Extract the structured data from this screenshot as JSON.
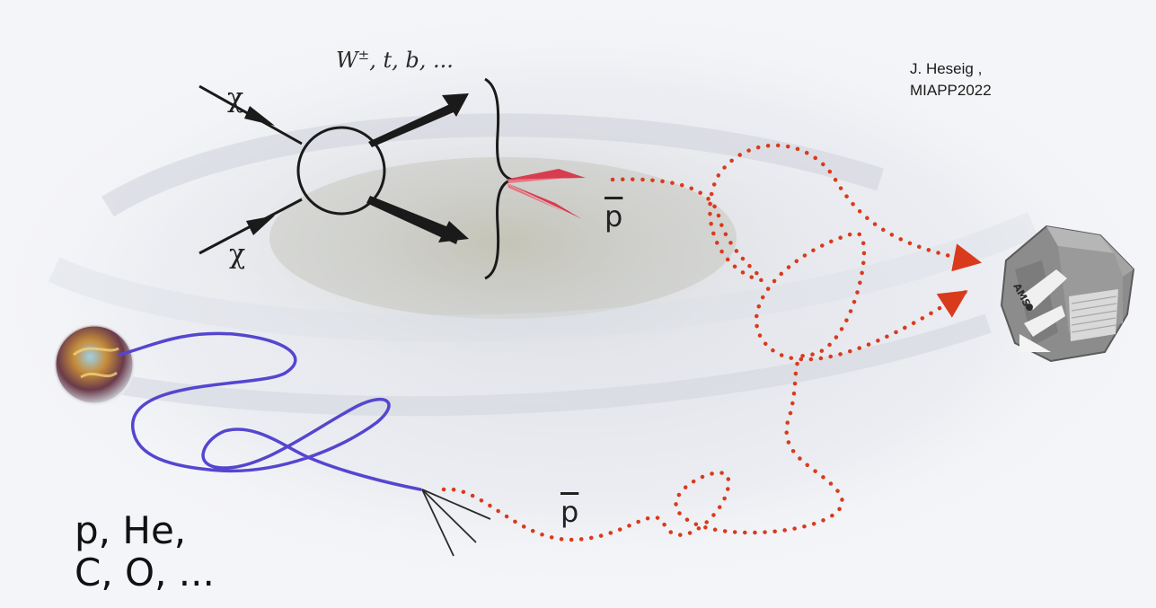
{
  "credit": {
    "line1": "J. Heseig ,",
    "line2": "MIAPP2022"
  },
  "annihilation": {
    "incoming_particle_1": "χ",
    "incoming_particle_2": "χ",
    "products_label": "W",
    "products_superscript": "±",
    "products_rest": ", t, b, ..."
  },
  "antiproton_label_top": "p",
  "antiproton_label_bottom": "p",
  "cosmic_ray_nuclei": {
    "line1": "p, He,",
    "line2": "C, O, ..."
  },
  "detector_label": "AMS",
  "colors": {
    "dm_arrow": "#d8344a",
    "antiproton_path": "#d93a1c",
    "cosmic_ray_path": "#5546d0",
    "detector_body": "#8a8a8a",
    "galaxy_core": "#b9b8a8"
  },
  "icons": {
    "supernova_remnant": "crab-nebula-icon",
    "detector": "ams-detector-icon"
  }
}
